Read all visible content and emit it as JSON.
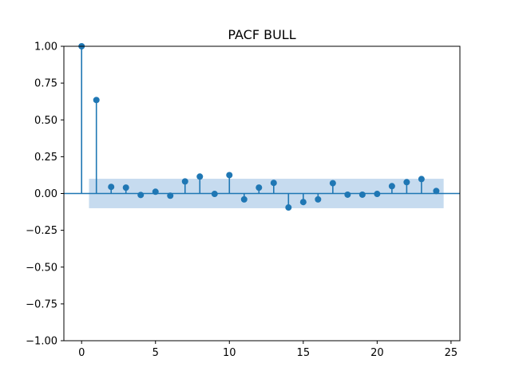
{
  "chart_data": {
    "type": "stem",
    "title": "PACF BULL",
    "xlabel": "",
    "ylabel": "",
    "xlim": [
      -1.2,
      25.6
    ],
    "ylim": [
      -1.0,
      1.0
    ],
    "xticks": [
      0,
      5,
      10,
      15,
      20,
      25
    ],
    "xtick_labels": [
      "0",
      "5",
      "10",
      "15",
      "20",
      "25"
    ],
    "yticks": [
      -1.0,
      -0.75,
      -0.5,
      -0.25,
      0.0,
      0.25,
      0.5,
      0.75,
      1.0
    ],
    "ytick_labels": [
      "−1.00",
      "−0.75",
      "−0.50",
      "−0.25",
      "0.00",
      "0.25",
      "0.50",
      "0.75",
      "1.00"
    ],
    "grid": false,
    "lags": [
      0,
      1,
      2,
      3,
      4,
      5,
      6,
      7,
      8,
      9,
      10,
      11,
      12,
      13,
      14,
      15,
      16,
      17,
      18,
      19,
      20,
      21,
      22,
      23,
      24
    ],
    "values": [
      1.0,
      0.635,
      0.045,
      0.04,
      -0.01,
      0.012,
      -0.015,
      0.082,
      0.115,
      -0.003,
      0.125,
      -0.04,
      0.04,
      0.072,
      -0.095,
      -0.058,
      -0.04,
      0.07,
      -0.008,
      -0.008,
      -0.003,
      0.05,
      0.077,
      0.098,
      0.017
    ],
    "confidence_band": {
      "x_start": 0.5,
      "x_end": 24.5,
      "lower": -0.1,
      "upper": 0.1
    },
    "colors": {
      "stem": "#1f77b4",
      "band": "#c6dbef",
      "axes": "#000000"
    }
  }
}
